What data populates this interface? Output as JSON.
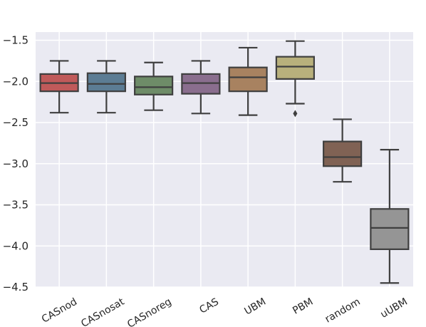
{
  "chart_data": {
    "type": "box",
    "title": "",
    "xlabel": "",
    "ylabel": "",
    "ylim": [
      -4.5,
      -1.4
    ],
    "yticks": [
      -4.5,
      -4.0,
      -3.5,
      -3.0,
      -2.5,
      -2.0,
      -1.5
    ],
    "ytick_labels": [
      "−4.5",
      "−4.0",
      "−3.5",
      "−3.0",
      "−2.5",
      "−2.0",
      "−1.5"
    ],
    "grid": true,
    "background": "#EAEAF2",
    "categories": [
      "CASnod",
      "CASnosat",
      "CASnoreg",
      "CAS",
      "UBM",
      "PBM",
      "random",
      "uUBM"
    ],
    "boxes": [
      {
        "name": "CASnod",
        "whisker_low": -2.38,
        "q1": -2.12,
        "median": -2.02,
        "q3": -1.91,
        "whisker_high": -1.75,
        "outliers": [],
        "color": "#C05A5A"
      },
      {
        "name": "CASnosat",
        "whisker_low": -2.38,
        "q1": -2.12,
        "median": -2.03,
        "q3": -1.9,
        "whisker_high": -1.75,
        "outliers": [],
        "color": "#5C7C94"
      },
      {
        "name": "CASnoreg",
        "whisker_low": -2.35,
        "q1": -2.16,
        "median": -2.07,
        "q3": -1.94,
        "whisker_high": -1.77,
        "outliers": [],
        "color": "#6E8C68"
      },
      {
        "name": "CAS",
        "whisker_low": -2.39,
        "q1": -2.15,
        "median": -2.02,
        "q3": -1.91,
        "whisker_high": -1.75,
        "outliers": [],
        "color": "#8A6E8E"
      },
      {
        "name": "UBM",
        "whisker_low": -2.41,
        "q1": -2.12,
        "median": -1.95,
        "q3": -1.83,
        "whisker_high": -1.59,
        "outliers": [],
        "color": "#A88260"
      },
      {
        "name": "PBM",
        "whisker_low": -2.27,
        "q1": -1.97,
        "median": -1.82,
        "q3": -1.7,
        "whisker_high": -1.51,
        "outliers": [
          -2.39
        ],
        "color": "#B8B07C"
      },
      {
        "name": "random",
        "whisker_low": -3.22,
        "q1": -3.03,
        "median": -2.92,
        "q3": -2.73,
        "whisker_high": -2.46,
        "outliers": [],
        "color": "#806254"
      },
      {
        "name": "uUBM",
        "whisker_low": -4.45,
        "q1": -4.04,
        "median": -3.78,
        "q3": -3.55,
        "whisker_high": -2.83,
        "outliers": [],
        "color": "#959595"
      }
    ]
  }
}
